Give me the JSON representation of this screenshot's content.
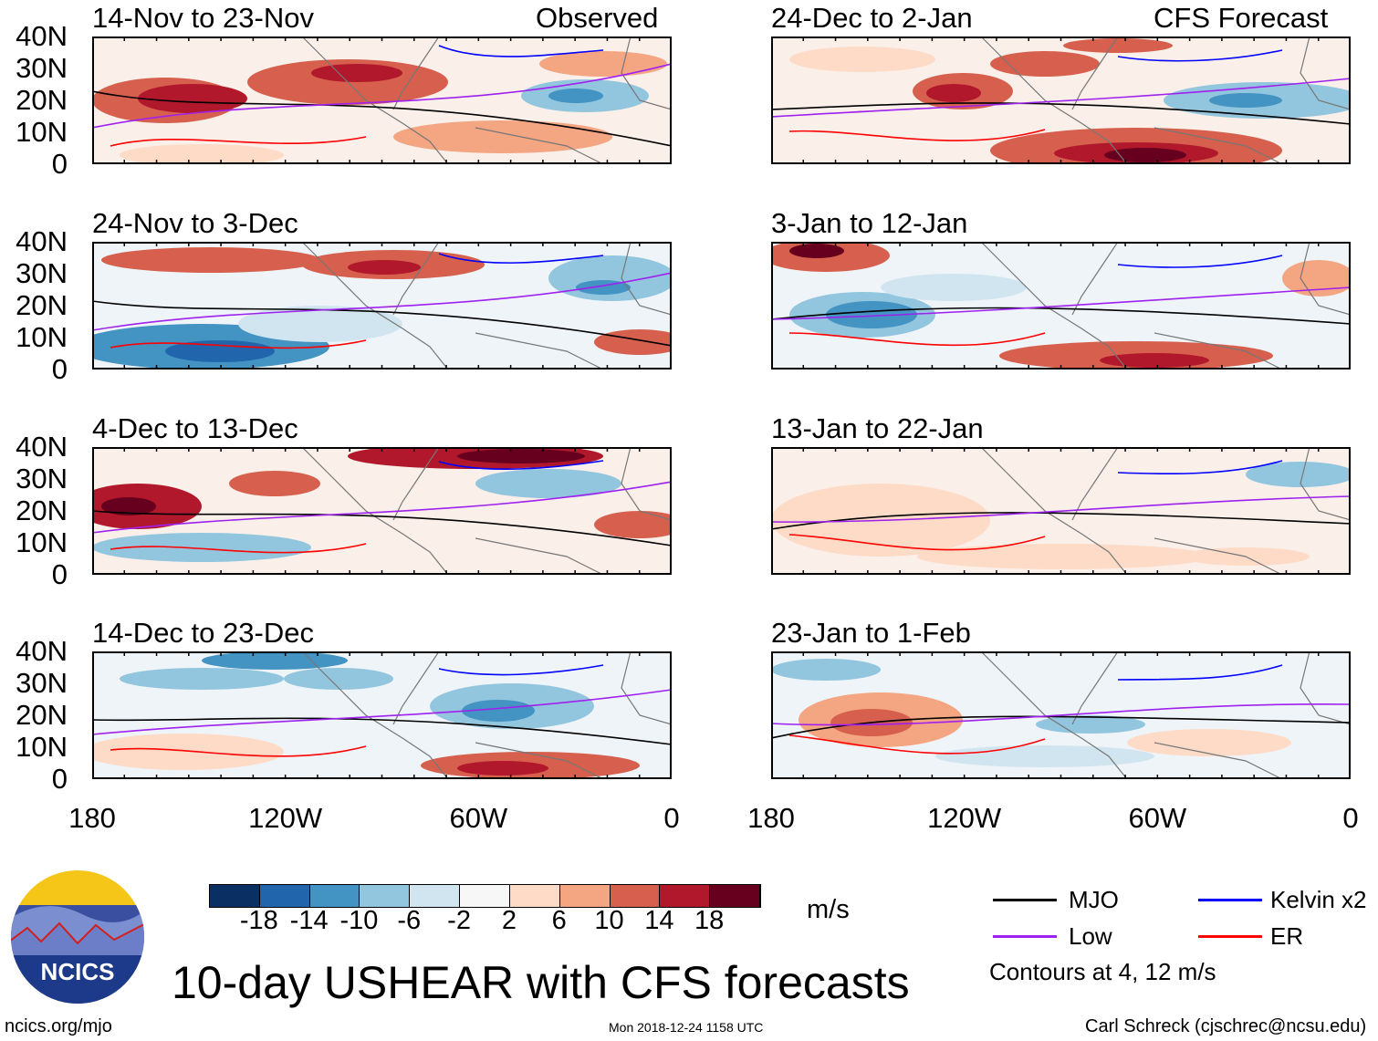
{
  "chart_data": {
    "type": "heatmap",
    "title": "10-day USHEAR with CFS forecasts",
    "units": "m/s",
    "columns": [
      {
        "header": "Observed",
        "panels": [
          "14-Nov to 23-Nov",
          "24-Nov to 3-Dec",
          "4-Dec to 13-Dec",
          "14-Dec to 23-Dec"
        ]
      },
      {
        "header": "CFS Forecast",
        "panels": [
          "24-Dec to 2-Jan",
          "3-Jan to 12-Jan",
          "13-Jan to 22-Jan",
          "23-Jan to 1-Feb"
        ]
      }
    ],
    "y_ticks": [
      "40N",
      "30N",
      "20N",
      "10N",
      "0"
    ],
    "x_ticks": [
      "180",
      "120W",
      "60W",
      "0"
    ],
    "lat_range": [
      0,
      40
    ],
    "lon_range": [
      -180,
      0
    ],
    "colorbar": {
      "levels": [
        "-18",
        "-14",
        "-10",
        "-6",
        "-2",
        "2",
        "6",
        "10",
        "14",
        "18"
      ],
      "colors": [
        "#0a2f62",
        "#2166ac",
        "#4393c3",
        "#92c5de",
        "#d1e5f0",
        "#f7f7f7",
        "#fddbc7",
        "#f4a582",
        "#d6604d",
        "#b2182b",
        "#67001f"
      ],
      "unit_label": "m/s"
    },
    "legend": [
      {
        "label": "MJO",
        "color": "#000000"
      },
      {
        "label": "Kelvin x2",
        "color": "#0000ff"
      },
      {
        "label": "Low",
        "color": "#a020f0"
      },
      {
        "label": "ER",
        "color": "#ff0000"
      }
    ],
    "contour_note": "Contours at 4, 12 m/s"
  },
  "footer": {
    "logo_text": "NCICS",
    "url": "ncics.org/mjo",
    "timestamp": "Mon 2018-12-24 1158 UTC",
    "author": "Carl Schreck (cjschrec@ncsu.edu)"
  }
}
